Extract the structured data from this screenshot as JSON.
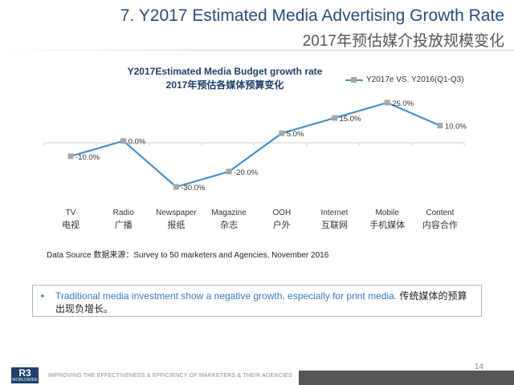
{
  "header": {
    "title_en": "7. Y2017 Estimated Media Advertising  Growth Rate",
    "title_cn": "2017年预估媒介投放规模变化"
  },
  "chart_data": {
    "type": "line",
    "title": "Y2017Estimated Media Budget growth rate",
    "subtitle": "2017年预估各媒体预算变化",
    "categories": [
      {
        "en": "TV",
        "cn": "电视"
      },
      {
        "en": "Radio",
        "cn": "广播"
      },
      {
        "en": "Newspaper",
        "cn": "报纸"
      },
      {
        "en": "Magazine",
        "cn": "杂志"
      },
      {
        "en": "OOH",
        "cn": "户外"
      },
      {
        "en": "Internet",
        "cn": "互联网"
      },
      {
        "en": "Mobile",
        "cn": "手机媒体"
      },
      {
        "en": "Content",
        "cn": "内容合作"
      }
    ],
    "series": [
      {
        "name": "Y2017e VS. Y2016(Q1-Q3)",
        "values": [
          -10.0,
          0.0,
          -30.0,
          -20.0,
          5.0,
          15.0,
          25.0,
          10.0
        ],
        "labels": [
          "-10.0%",
          "0.0%",
          "-30.0%",
          "-20.0%",
          "5.0%",
          "15.0%",
          "25.0%",
          "10.0%"
        ],
        "color": "#4a90c8",
        "marker_color": "#a8a8a8"
      }
    ],
    "ylim": [
      -30,
      25
    ],
    "grid": false,
    "legend_position": "top-right"
  },
  "source_text": "Data Source 数据来源：Survey to 50 marketers and Agencies, November 2016",
  "bullet": {
    "en": "Traditional media investment show a negative growth, especially for print media.",
    "cn": "传统媒体的预算出现负增长。"
  },
  "footer": {
    "page": "14",
    "tagline": "IMPROVING THE EFFECTIVENESS & EFFICIENCY OF MARKETERS & THEIR AGENCIES",
    "logo": "R3",
    "logo_sub": "WORLDWIDE"
  }
}
